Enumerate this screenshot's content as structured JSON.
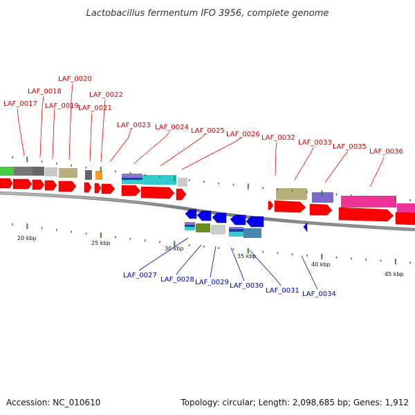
{
  "title": "Lactobacillus fermentum IFO 3956, complete genome",
  "footer": {
    "accession": "Accession: NC_010610",
    "topology": "Topology: circular; Length: 2,098,685 bp; Genes: 1,912"
  },
  "colors": {
    "forward_label": "#cc0000",
    "reverse_label": "#0000aa",
    "forward_arrow": "#ff0000",
    "reverse_arrow": "#0000ee",
    "tick": "#2e8b2e"
  },
  "top_labels": [
    "LAF_0017",
    "LAF_0018",
    "LAF_0019",
    "LAF_0020",
    "LAF_0021",
    "LAF_0022",
    "LAF_0023",
    "LAF_0024",
    "LAF_0025",
    "LAF_0026",
    "LAF_0032",
    "LAF_0033",
    "LAF_0035",
    "LAF_0036"
  ],
  "bottom_labels": [
    "LAF_0027",
    "LAF_0028",
    "LAF_0029",
    "LAF_0030",
    "LAF_0031",
    "LAF_0034"
  ],
  "scale_labels": [
    "20 kbp",
    "25 kbp",
    "30 kbp",
    "35 kbp",
    "40 kbp",
    "45 kbp"
  ]
}
